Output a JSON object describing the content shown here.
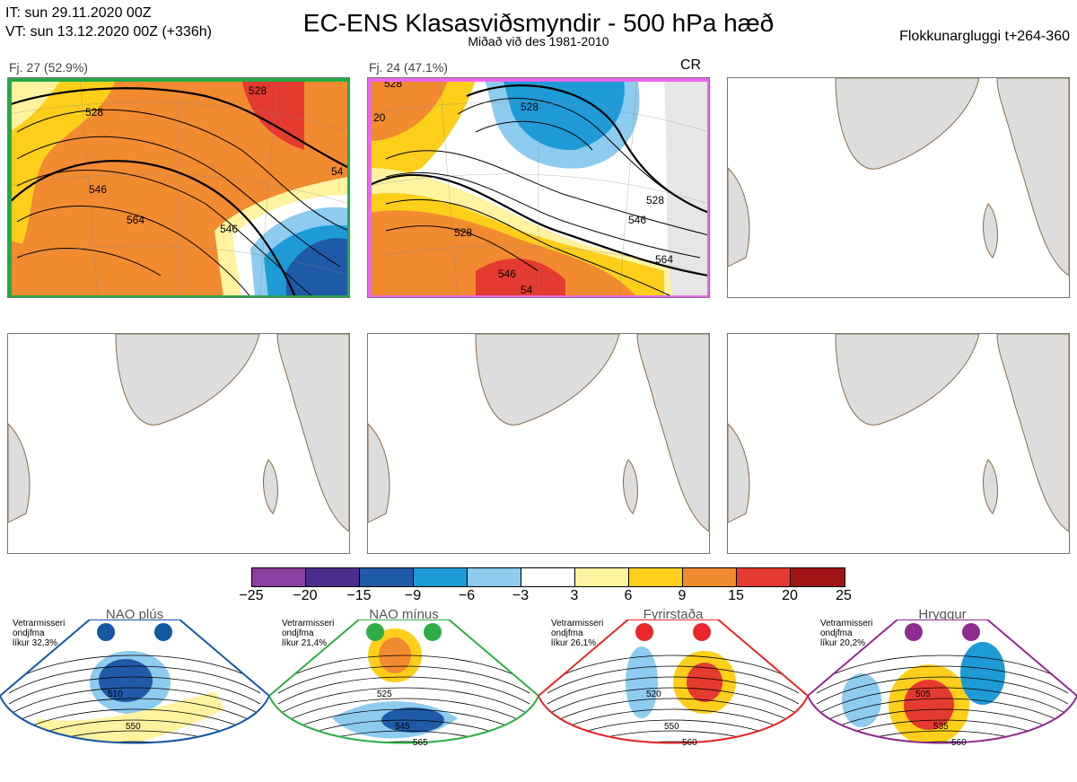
{
  "header": {
    "it_line": "IT: sun 29.11.2020 00Z",
    "vt_line": "VT: sun 13.12.2020 00Z  (+336h)",
    "title": "EC-ENS Klasasviðsmyndir - 500 hPa hæð",
    "subtitle": "Miðað við des 1981-2010",
    "window": "Flokkunargluggi t+264-360"
  },
  "panels": [
    {
      "label": "Fj. 27 (52.9%)",
      "frame_color": "#22aa44",
      "contours": [
        "528",
        "546",
        "564",
        "546",
        "528",
        "54"
      ]
    },
    {
      "label": "Fj. 24 (47.1%)",
      "frame_color": "#ee66ee",
      "tag": "CR",
      "contours": [
        "528",
        "528",
        "528",
        "546",
        "546",
        "564",
        "528",
        "20",
        "54"
      ]
    }
  ],
  "colorbar": {
    "colors": [
      "#8b3fa0",
      "#4b2e8c",
      "#1f5aa6",
      "#1e9ad6",
      "#8dcbef",
      "#ffffff",
      "#fff3a0",
      "#fdcf1a",
      "#f28a30",
      "#e53a2f",
      "#a01416"
    ],
    "ticks": [
      "−25",
      "−20",
      "−15",
      "−9",
      "−6",
      "−3",
      "3",
      "6",
      "9",
      "15",
      "20",
      "25"
    ]
  },
  "regimes": [
    {
      "title": "NAO plús",
      "note": [
        "Vetrarmisseri",
        "ondjfma",
        "líkur 32,3%"
      ],
      "color": "#1557a3",
      "labels": [
        "510",
        "550"
      ]
    },
    {
      "title": "NAO mínus",
      "note": [
        "Vetrarmisseri",
        "ondjfma",
        "líkur 21,4%"
      ],
      "color": "#2fae47",
      "labels": [
        "525",
        "545",
        "565"
      ]
    },
    {
      "title": "Fyrirstaða",
      "note": [
        "Vetrarmisseri",
        "ondjfma",
        "líkur 26,1%"
      ],
      "color": "#e8262b",
      "labels": [
        "520",
        "550",
        "560"
      ]
    },
    {
      "title": "Hryggur",
      "note": [
        "Vetrarmisseri",
        "ondjfma",
        "líkur 20,2%"
      ],
      "color": "#8f2c8f",
      "labels": [
        "505",
        "535",
        "560"
      ]
    }
  ]
}
